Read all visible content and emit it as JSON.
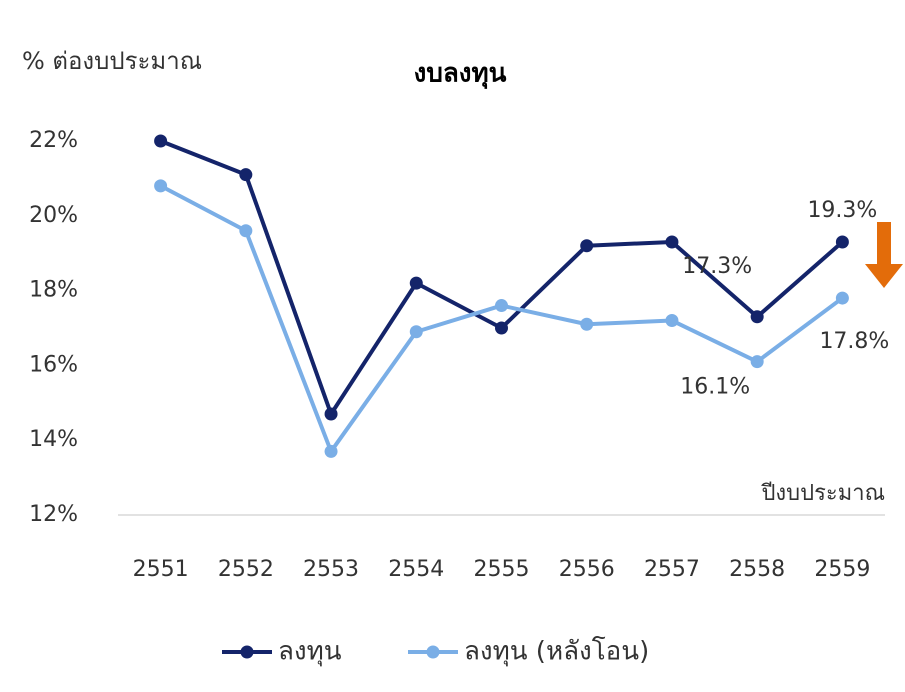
{
  "chart_data": {
    "type": "line",
    "title": "งบลงทุน",
    "y_label": "% ต่องบประมาณ",
    "x_label": "ปีงบประมาณ",
    "categories": [
      "2551",
      "2552",
      "2553",
      "2554",
      "2555",
      "2556",
      "2557",
      "2558",
      "2559"
    ],
    "series": [
      {
        "name": "ลงทุน",
        "color": "#14246a",
        "values": [
          22.0,
          21.1,
          14.7,
          18.2,
          17.0,
          19.2,
          19.3,
          17.3,
          19.3
        ],
        "value_labels": [
          null,
          null,
          null,
          null,
          null,
          null,
          null,
          "17.3%",
          "19.3%"
        ]
      },
      {
        "name": "ลงทุน (หลังโอน)",
        "color": "#7aaee6",
        "values": [
          20.8,
          19.6,
          13.7,
          16.9,
          17.6,
          17.1,
          17.2,
          16.1,
          17.8
        ],
        "value_labels": [
          null,
          null,
          null,
          null,
          null,
          null,
          null,
          "16.1%",
          "17.8%"
        ]
      }
    ],
    "ylim": [
      12,
      22
    ],
    "yticks": [
      {
        "value": 12,
        "label": "12%"
      },
      {
        "value": 14,
        "label": "14%"
      },
      {
        "value": 16,
        "label": "16%"
      },
      {
        "value": 18,
        "label": "18%"
      },
      {
        "value": 20,
        "label": "20%"
      },
      {
        "value": 22,
        "label": "22%"
      }
    ],
    "grid": false,
    "legend": "bottom"
  }
}
